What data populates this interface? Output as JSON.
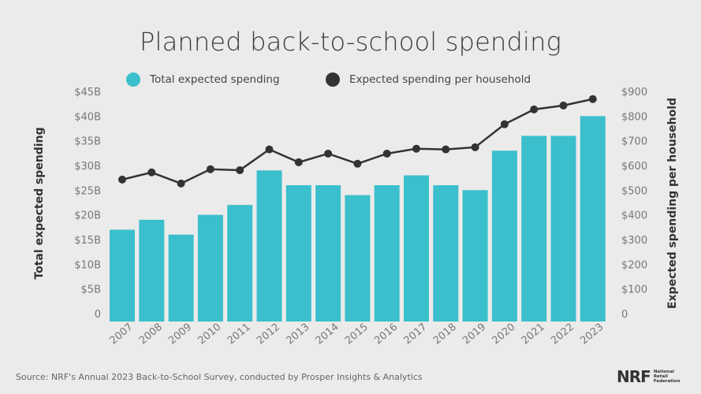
{
  "chart_data": {
    "type": "bar",
    "title": "Planned back-to-school spending",
    "categories": [
      "2007",
      "2008",
      "2009",
      "2010",
      "2011",
      "2012",
      "2013",
      "2014",
      "2015",
      "2016",
      "2017",
      "2018",
      "2019",
      "2020",
      "2021",
      "2022",
      "2023"
    ],
    "series": [
      {
        "name": "Total expected spending",
        "type": "bar",
        "axis": "left",
        "color": "#3bbfcc",
        "values": [
          17,
          19,
          16,
          20,
          22,
          29,
          26,
          26,
          24,
          26,
          28,
          26,
          25,
          33,
          36,
          36,
          40
        ]
      },
      {
        "name": "Expected spending per household",
        "type": "line",
        "axis": "right",
        "color": "#333333",
        "values": [
          543,
          572,
          527,
          585,
          581,
          665,
          613,
          648,
          607,
          648,
          668,
          665,
          674,
          767,
          827,
          843,
          869
        ]
      }
    ],
    "ylabel": "Total expected spending",
    "ylabel_right": "Expected spending per household",
    "ylim": [
      0,
      45
    ],
    "ylim_right": [
      0,
      900
    ],
    "yticks": [
      "0",
      "$5B",
      "$10B",
      "$15B",
      "$20B",
      "$25B",
      "$30B",
      "$35B",
      "$40B",
      "$45B"
    ],
    "yticks_right": [
      "0",
      "$100",
      "$200",
      "$300",
      "$400",
      "$500",
      "$600",
      "$700",
      "$800",
      "$900"
    ],
    "grid": false,
    "legend": "top"
  },
  "source": "Source: NRF's Annual 2023 Back-to-School Survey, conducted by Prosper Insights & Analytics",
  "logo": {
    "text": "NRF",
    "subtext": "National Retail Federation"
  }
}
